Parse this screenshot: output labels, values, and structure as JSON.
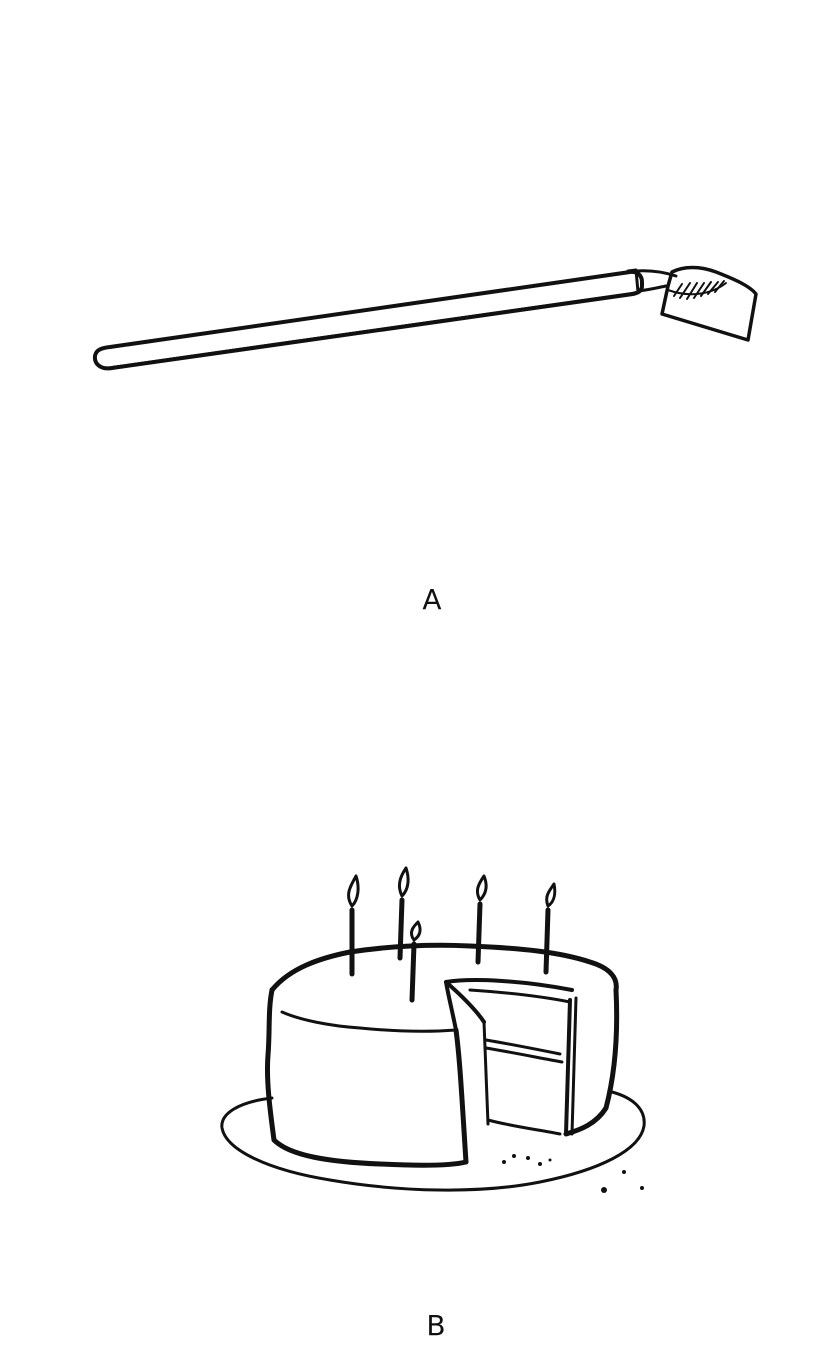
{
  "figures": [
    {
      "label": "A",
      "illustration": "hoe-icon"
    },
    {
      "label": "B",
      "illustration": "birthday-cake-icon"
    }
  ],
  "colors": {
    "ink": "#111111",
    "paper": "#ffffff"
  }
}
